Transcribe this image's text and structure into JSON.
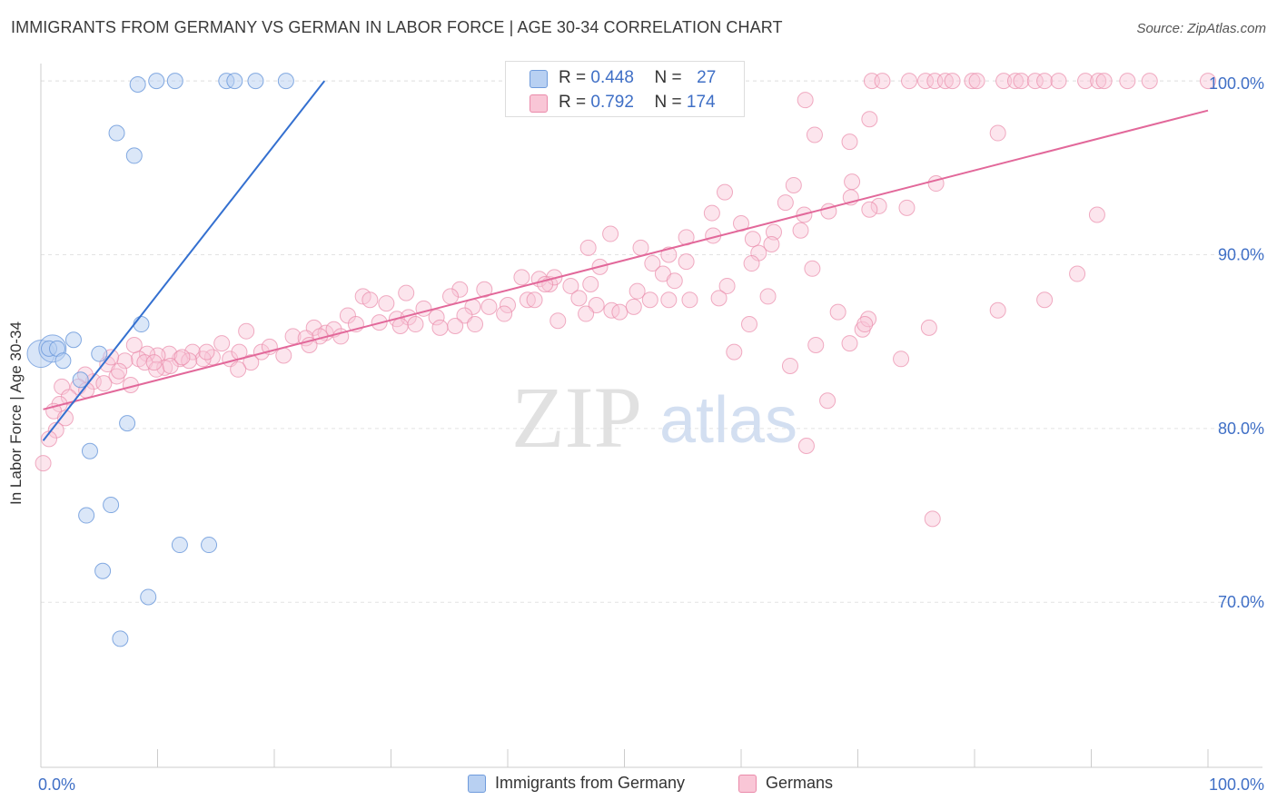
{
  "title": "IMMIGRANTS FROM GERMANY VS GERMAN IN LABOR FORCE | AGE 30-34 CORRELATION CHART",
  "source": "Source: ZipAtlas.com",
  "watermark": {
    "zip": "ZIP",
    "atlas": "atlas"
  },
  "stats": {
    "rows": [
      {
        "r_label": "R =",
        "r": "0.448",
        "n_label": "N =",
        "n": "27",
        "fill": "#b8d0f2",
        "stroke": "#6f9bdc"
      },
      {
        "r_label": "R =",
        "r": "0.792",
        "n_label": "N =",
        "n": "174",
        "fill": "#f9c6d6",
        "stroke": "#ea8aaa"
      }
    ]
  },
  "legend": {
    "items": [
      {
        "label": "Immigrants from Germany",
        "fill": "#b8d0f2",
        "stroke": "#6f9bdc"
      },
      {
        "label": "Germans",
        "fill": "#f9c6d6",
        "stroke": "#ea8aaa"
      }
    ]
  },
  "chart_data": {
    "type": "scatter",
    "xlabel": "",
    "ylabel": "In Labor Force | Age 30-34",
    "xlim": [
      0,
      100
    ],
    "ylim": [
      60.5,
      101
    ],
    "x_tick_labels": [
      {
        "value": 0,
        "label": "0.0%"
      },
      {
        "value": 100,
        "label": "100.0%"
      }
    ],
    "y_tick_labels": [
      {
        "value": 100,
        "label": "100.0%"
      },
      {
        "value": 90,
        "label": "90.0%"
      },
      {
        "value": 80,
        "label": "80.0%"
      },
      {
        "value": 70,
        "label": "70.0%"
      }
    ],
    "grid": true,
    "legend_position": "bottom",
    "colors": {
      "blue": "#6f9bdc",
      "blue_line": "#3470d0",
      "pink": "#ea8aaa",
      "pink_line": "#e2689a",
      "tick_text": "#3f6fc6"
    },
    "series": [
      {
        "name": "Immigrants from Germany",
        "trend": [
          [
            0.2,
            79.3
          ],
          [
            24.3,
            100.0
          ]
        ],
        "points": [
          [
            8.3,
            99.8
          ],
          [
            9.9,
            100.0
          ],
          [
            11.5,
            100.0
          ],
          [
            15.9,
            100.0
          ],
          [
            16.6,
            100.0
          ],
          [
            18.4,
            100.0
          ],
          [
            21.0,
            100.0
          ],
          [
            6.5,
            97.0
          ],
          [
            8.0,
            95.7
          ],
          [
            8.6,
            86.0
          ],
          [
            2.8,
            85.1
          ],
          [
            0.7,
            84.6
          ],
          [
            1.4,
            84.6
          ],
          [
            1.9,
            83.9
          ],
          [
            5.0,
            84.3
          ],
          [
            3.4,
            82.8
          ],
          [
            7.4,
            80.3
          ],
          [
            4.2,
            78.7
          ],
          [
            3.9,
            75.0
          ],
          [
            6.0,
            75.6
          ],
          [
            11.9,
            73.3
          ],
          [
            14.4,
            73.3
          ],
          [
            5.3,
            71.8
          ],
          [
            9.2,
            70.3
          ],
          [
            6.8,
            67.9
          ]
        ],
        "large_points": [
          [
            0.0,
            84.3
          ],
          [
            1.0,
            84.6
          ]
        ]
      },
      {
        "name": "Germans",
        "trend": [
          [
            0.2,
            81.1
          ],
          [
            100.0,
            98.3
          ]
        ],
        "points": [
          [
            71.2,
            100.0
          ],
          [
            72.1,
            100.0
          ],
          [
            74.4,
            100.0
          ],
          [
            75.8,
            100.0
          ],
          [
            76.6,
            100.0
          ],
          [
            77.5,
            100.0
          ],
          [
            78.1,
            100.0
          ],
          [
            79.8,
            100.0
          ],
          [
            80.2,
            100.0
          ],
          [
            82.5,
            100.0
          ],
          [
            83.5,
            100.0
          ],
          [
            84.0,
            100.0
          ],
          [
            85.2,
            100.0
          ],
          [
            86.0,
            100.0
          ],
          [
            87.2,
            100.0
          ],
          [
            89.5,
            100.0
          ],
          [
            90.6,
            100.0
          ],
          [
            91.1,
            100.0
          ],
          [
            93.1,
            100.0
          ],
          [
            95.0,
            100.0
          ],
          [
            100.0,
            100.0
          ],
          [
            65.5,
            98.9
          ],
          [
            71.0,
            97.8
          ],
          [
            66.3,
            96.9
          ],
          [
            69.3,
            96.5
          ],
          [
            82.0,
            97.0
          ],
          [
            69.5,
            94.2
          ],
          [
            76.7,
            94.1
          ],
          [
            64.5,
            94.0
          ],
          [
            58.6,
            93.6
          ],
          [
            69.4,
            93.3
          ],
          [
            63.8,
            93.0
          ],
          [
            71.8,
            92.8
          ],
          [
            74.2,
            92.7
          ],
          [
            67.5,
            92.5
          ],
          [
            71.0,
            92.6
          ],
          [
            90.5,
            92.3
          ],
          [
            57.5,
            92.4
          ],
          [
            60.0,
            91.8
          ],
          [
            62.8,
            91.3
          ],
          [
            65.1,
            91.4
          ],
          [
            55.3,
            91.0
          ],
          [
            57.6,
            91.1
          ],
          [
            61.0,
            90.9
          ],
          [
            62.6,
            90.6
          ],
          [
            61.5,
            90.1
          ],
          [
            51.4,
            90.4
          ],
          [
            53.8,
            90.0
          ],
          [
            52.4,
            89.5
          ],
          [
            48.8,
            91.2
          ],
          [
            46.9,
            90.4
          ],
          [
            47.9,
            89.3
          ],
          [
            55.3,
            89.6
          ],
          [
            53.3,
            88.9
          ],
          [
            54.3,
            88.5
          ],
          [
            58.8,
            88.2
          ],
          [
            60.9,
            89.5
          ],
          [
            66.1,
            89.2
          ],
          [
            41.2,
            88.7
          ],
          [
            42.7,
            88.6
          ],
          [
            43.6,
            88.3
          ],
          [
            44.0,
            88.7
          ],
          [
            45.4,
            88.2
          ],
          [
            47.1,
            88.3
          ],
          [
            51.1,
            87.9
          ],
          [
            53.8,
            87.4
          ],
          [
            58.1,
            87.5
          ],
          [
            52.2,
            87.4
          ],
          [
            55.6,
            87.4
          ],
          [
            62.3,
            87.6
          ],
          [
            35.9,
            88.0
          ],
          [
            38.0,
            88.0
          ],
          [
            43.2,
            88.3
          ],
          [
            31.3,
            87.8
          ],
          [
            27.6,
            87.6
          ],
          [
            37.0,
            87.0
          ],
          [
            38.4,
            87.0
          ],
          [
            32.8,
            86.9
          ],
          [
            33.9,
            86.4
          ],
          [
            36.3,
            86.5
          ],
          [
            46.1,
            87.5
          ],
          [
            47.6,
            87.1
          ],
          [
            40.0,
            87.1
          ],
          [
            41.7,
            87.4
          ],
          [
            46.7,
            86.6
          ],
          [
            28.2,
            87.4
          ],
          [
            29.6,
            87.2
          ],
          [
            23.4,
            85.8
          ],
          [
            26.3,
            86.5
          ],
          [
            27.0,
            86.0
          ],
          [
            29.0,
            86.1
          ],
          [
            30.5,
            86.3
          ],
          [
            31.5,
            86.4
          ],
          [
            21.6,
            85.3
          ],
          [
            24.4,
            85.5
          ],
          [
            25.1,
            85.7
          ],
          [
            23.9,
            85.3
          ],
          [
            22.7,
            85.2
          ],
          [
            30.8,
            85.9
          ],
          [
            37.2,
            86.0
          ],
          [
            35.5,
            85.9
          ],
          [
            25.7,
            85.3
          ],
          [
            32.1,
            86.0
          ],
          [
            34.2,
            85.8
          ],
          [
            18.9,
            84.4
          ],
          [
            19.6,
            84.7
          ],
          [
            23.0,
            84.8
          ],
          [
            17.6,
            85.6
          ],
          [
            15.5,
            84.9
          ],
          [
            16.2,
            84.0
          ],
          [
            18.0,
            83.8
          ],
          [
            14.7,
            84.1
          ],
          [
            13.0,
            84.4
          ],
          [
            13.9,
            84.0
          ],
          [
            11.9,
            84.0
          ],
          [
            12.7,
            83.9
          ],
          [
            11.0,
            84.3
          ],
          [
            10.0,
            84.2
          ],
          [
            10.6,
            83.5
          ],
          [
            9.1,
            84.3
          ],
          [
            8.4,
            84.0
          ],
          [
            8.0,
            84.8
          ],
          [
            7.2,
            83.9
          ],
          [
            8.9,
            83.8
          ],
          [
            9.9,
            83.4
          ],
          [
            6.5,
            83.0
          ],
          [
            5.7,
            83.7
          ],
          [
            4.5,
            82.7
          ],
          [
            3.8,
            83.1
          ],
          [
            3.2,
            82.4
          ],
          [
            5.4,
            82.6
          ],
          [
            1.8,
            82.4
          ],
          [
            2.4,
            81.8
          ],
          [
            1.6,
            81.4
          ],
          [
            3.9,
            82.2
          ],
          [
            6.7,
            83.3
          ],
          [
            20.8,
            84.2
          ],
          [
            16.9,
            83.4
          ],
          [
            9.7,
            83.8
          ],
          [
            11.1,
            83.6
          ],
          [
            1.1,
            81.0
          ],
          [
            2.1,
            80.6
          ],
          [
            1.3,
            79.9
          ],
          [
            0.7,
            79.4
          ],
          [
            0.2,
            78.0
          ],
          [
            48.9,
            86.8
          ],
          [
            59.4,
            84.4
          ],
          [
            68.3,
            86.7
          ],
          [
            70.4,
            85.7
          ],
          [
            69.3,
            84.9
          ],
          [
            70.9,
            86.3
          ],
          [
            82.0,
            86.8
          ],
          [
            76.1,
            85.8
          ],
          [
            73.7,
            84.0
          ],
          [
            64.2,
            83.6
          ],
          [
            65.6,
            79.0
          ],
          [
            76.4,
            74.8
          ],
          [
            67.4,
            81.6
          ],
          [
            70.6,
            86.0
          ],
          [
            65.4,
            92.3
          ],
          [
            44.3,
            86.2
          ],
          [
            49.6,
            86.7
          ],
          [
            50.8,
            87.0
          ],
          [
            39.7,
            86.6
          ],
          [
            35.1,
            87.6
          ],
          [
            42.3,
            87.4
          ],
          [
            17.0,
            84.4
          ],
          [
            14.2,
            84.4
          ],
          [
            7.7,
            82.5
          ],
          [
            6.0,
            84.1
          ],
          [
            12.1,
            84.1
          ],
          [
            66.4,
            84.8
          ],
          [
            60.7,
            86.0
          ],
          [
            86.0,
            87.4
          ],
          [
            88.8,
            88.9
          ]
        ]
      }
    ]
  }
}
